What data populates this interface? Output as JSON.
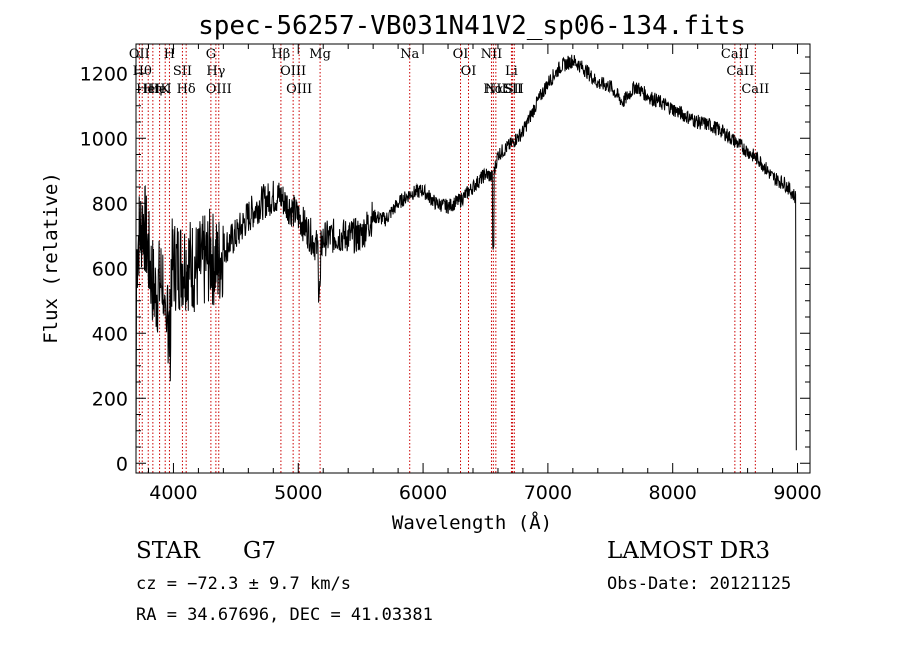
{
  "chart_data": {
    "type": "line",
    "title": "spec-56257-VB031N41V2_sp06-134.fits",
    "xlabel": "Wavelength (Å)",
    "ylabel": "Flux (relative)",
    "xlim": [
      3700,
      9100
    ],
    "ylim": [
      -30,
      1290
    ],
    "xticks": [
      4000,
      5000,
      6000,
      7000,
      8000,
      9000
    ],
    "yticks": [
      0,
      200,
      400,
      600,
      800,
      1000,
      1200
    ],
    "grid": false,
    "spectrum_anchors": [
      [
        3700,
        600
      ],
      [
        3720,
        700
      ],
      [
        3760,
        750
      ],
      [
        3800,
        640
      ],
      [
        3850,
        520
      ],
      [
        3900,
        560
      ],
      [
        3950,
        590
      ],
      [
        4000,
        610
      ],
      [
        4100,
        620
      ],
      [
        4200,
        600
      ],
      [
        4300,
        640
      ],
      [
        4350,
        610
      ],
      [
        4400,
        660
      ],
      [
        4500,
        700
      ],
      [
        4600,
        760
      ],
      [
        4700,
        800
      ],
      [
        4800,
        820
      ],
      [
        4860,
        820
      ],
      [
        4900,
        800
      ],
      [
        5000,
        760
      ],
      [
        5100,
        700
      ],
      [
        5170,
        650
      ],
      [
        5200,
        690
      ],
      [
        5300,
        700
      ],
      [
        5400,
        700
      ],
      [
        5500,
        700
      ],
      [
        5600,
        760
      ],
      [
        5700,
        750
      ],
      [
        5800,
        800
      ],
      [
        5900,
        830
      ],
      [
        6000,
        840
      ],
      [
        6100,
        800
      ],
      [
        6200,
        790
      ],
      [
        6300,
        810
      ],
      [
        6400,
        850
      ],
      [
        6500,
        890
      ],
      [
        6560,
        880
      ],
      [
        6600,
        950
      ],
      [
        6700,
        980
      ],
      [
        6800,
        1020
      ],
      [
        6900,
        1100
      ],
      [
        7000,
        1170
      ],
      [
        7100,
        1220
      ],
      [
        7200,
        1240
      ],
      [
        7300,
        1210
      ],
      [
        7400,
        1170
      ],
      [
        7500,
        1160
      ],
      [
        7600,
        1110
      ],
      [
        7700,
        1160
      ],
      [
        7800,
        1130
      ],
      [
        7900,
        1110
      ],
      [
        8000,
        1090
      ],
      [
        8100,
        1070
      ],
      [
        8200,
        1050
      ],
      [
        8300,
        1040
      ],
      [
        8400,
        1020
      ],
      [
        8500,
        990
      ],
      [
        8600,
        960
      ],
      [
        8700,
        930
      ],
      [
        8800,
        880
      ],
      [
        8900,
        860
      ],
      [
        8980,
        820
      ]
    ],
    "line_markers": [
      {
        "wl": 3750,
        "label": "Hθ"
      },
      {
        "wl": 3727,
        "label": "OII"
      },
      {
        "wl": 3798,
        "label": "HeI"
      },
      {
        "wl": 3835,
        "label": "Hη"
      },
      {
        "wl": 3889,
        "label": "HeI"
      },
      {
        "wl": 3934,
        "label": "K"
      },
      {
        "wl": 3968,
        "label": "H"
      },
      {
        "wl": 4072,
        "label": "SII"
      },
      {
        "wl": 4102,
        "label": "Hδ"
      },
      {
        "wl": 4300,
        "label": "G"
      },
      {
        "wl": 4340,
        "label": "Hγ"
      },
      {
        "wl": 4363,
        "label": "OIII"
      },
      {
        "wl": 4861,
        "label": "Hβ"
      },
      {
        "wl": 4959,
        "label": "OIII"
      },
      {
        "wl": 5007,
        "label": "OIII"
      },
      {
        "wl": 5175,
        "label": "Mg"
      },
      {
        "wl": 5893,
        "label": "Na"
      },
      {
        "wl": 6300,
        "label": "OI"
      },
      {
        "wl": 6364,
        "label": "OI"
      },
      {
        "wl": 6548,
        "label": "NII"
      },
      {
        "wl": 6563,
        "label": "Hα"
      },
      {
        "wl": 6583,
        "label": "NII"
      },
      {
        "wl": 6708,
        "label": "Li"
      },
      {
        "wl": 6717,
        "label": "SII"
      },
      {
        "wl": 6731,
        "label": "SII"
      },
      {
        "wl": 8498,
        "label": "CaII"
      },
      {
        "wl": 8542,
        "label": "CaII"
      },
      {
        "wl": 8662,
        "label": "CaII"
      }
    ]
  },
  "info": {
    "object_class": "STAR",
    "subclass": "G7",
    "survey": "LAMOST DR3",
    "cz": "cz = −72.3 ± 9.7 km/s",
    "obs_date": "Obs-Date: 20121125",
    "coords": "RA =  34.67696, DEC =  41.03381"
  },
  "colors": {
    "line_marker": "#cc0000",
    "spectrum": "#000000"
  }
}
